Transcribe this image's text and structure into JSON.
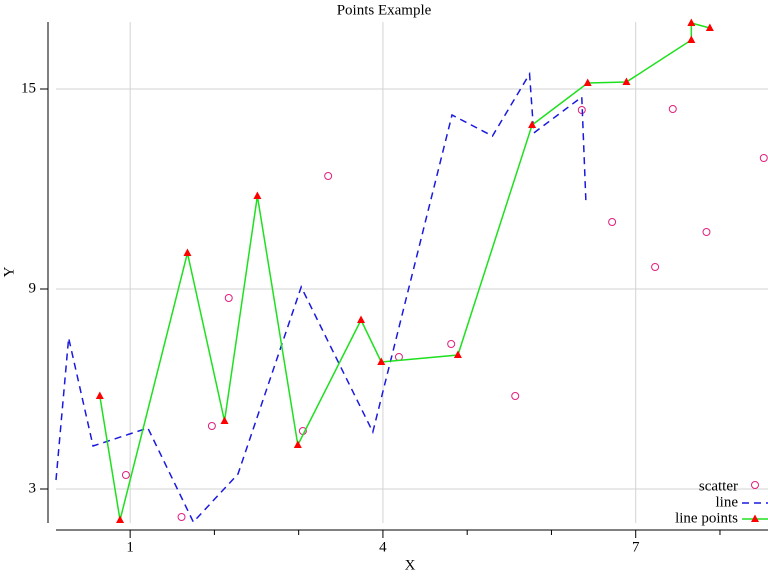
{
  "chart_data": {
    "type": "scatter-line",
    "title": "Points Example",
    "x_label": "X",
    "y_label": "Y",
    "xlim": [
      0.12,
      8.57
    ],
    "ylim": [
      1.98,
      17.01
    ],
    "xticks": [
      1,
      4,
      7
    ],
    "yticks": [
      3,
      9,
      15
    ],
    "xminorticks": [
      2,
      3,
      5,
      6,
      8
    ],
    "grid": true,
    "legend": "bottom-right",
    "series": [
      {
        "name": "scatter",
        "color": "#e0207f",
        "style": "points",
        "x": [
          0.95,
          1.61,
          1.97,
          2.17,
          3.05,
          3.35,
          4.19,
          4.81,
          5.57,
          6.36,
          6.72,
          7.23,
          7.44,
          7.84,
          8.52
        ],
        "values": [
          3.42,
          2.16,
          4.89,
          8.73,
          4.74,
          12.39,
          6.96,
          7.35,
          5.79,
          14.37,
          11.01,
          9.66,
          14.4,
          10.71,
          12.93
        ]
      },
      {
        "name": "line",
        "color": "#1a1adf",
        "style": "dashed",
        "x": [
          0.12,
          0.27,
          0.56,
          1.21,
          1.75,
          2.28,
          3.03,
          3.88,
          4.82,
          5.3,
          5.74,
          5.79,
          6.36,
          6.41
        ],
        "values": [
          3.27,
          7.53,
          4.29,
          4.83,
          2.01,
          3.45,
          9.06,
          4.71,
          14.22,
          13.59,
          15.45,
          13.68,
          14.76,
          11.55
        ]
      },
      {
        "name": "line points",
        "color": "#1ee01e",
        "marker_color": "#ff0000",
        "style": "linepoints",
        "x": [
          0.64,
          0.88,
          1.68,
          2.12,
          2.51,
          2.99,
          3.74,
          3.98,
          4.89,
          5.77,
          6.43,
          6.89,
          7.66,
          7.66,
          7.88
        ],
        "values": [
          5.79,
          2.07,
          10.08,
          5.04,
          11.79,
          4.32,
          8.07,
          6.81,
          7.02,
          13.92,
          15.18,
          15.21,
          16.47,
          16.98,
          16.83
        ]
      }
    ]
  }
}
